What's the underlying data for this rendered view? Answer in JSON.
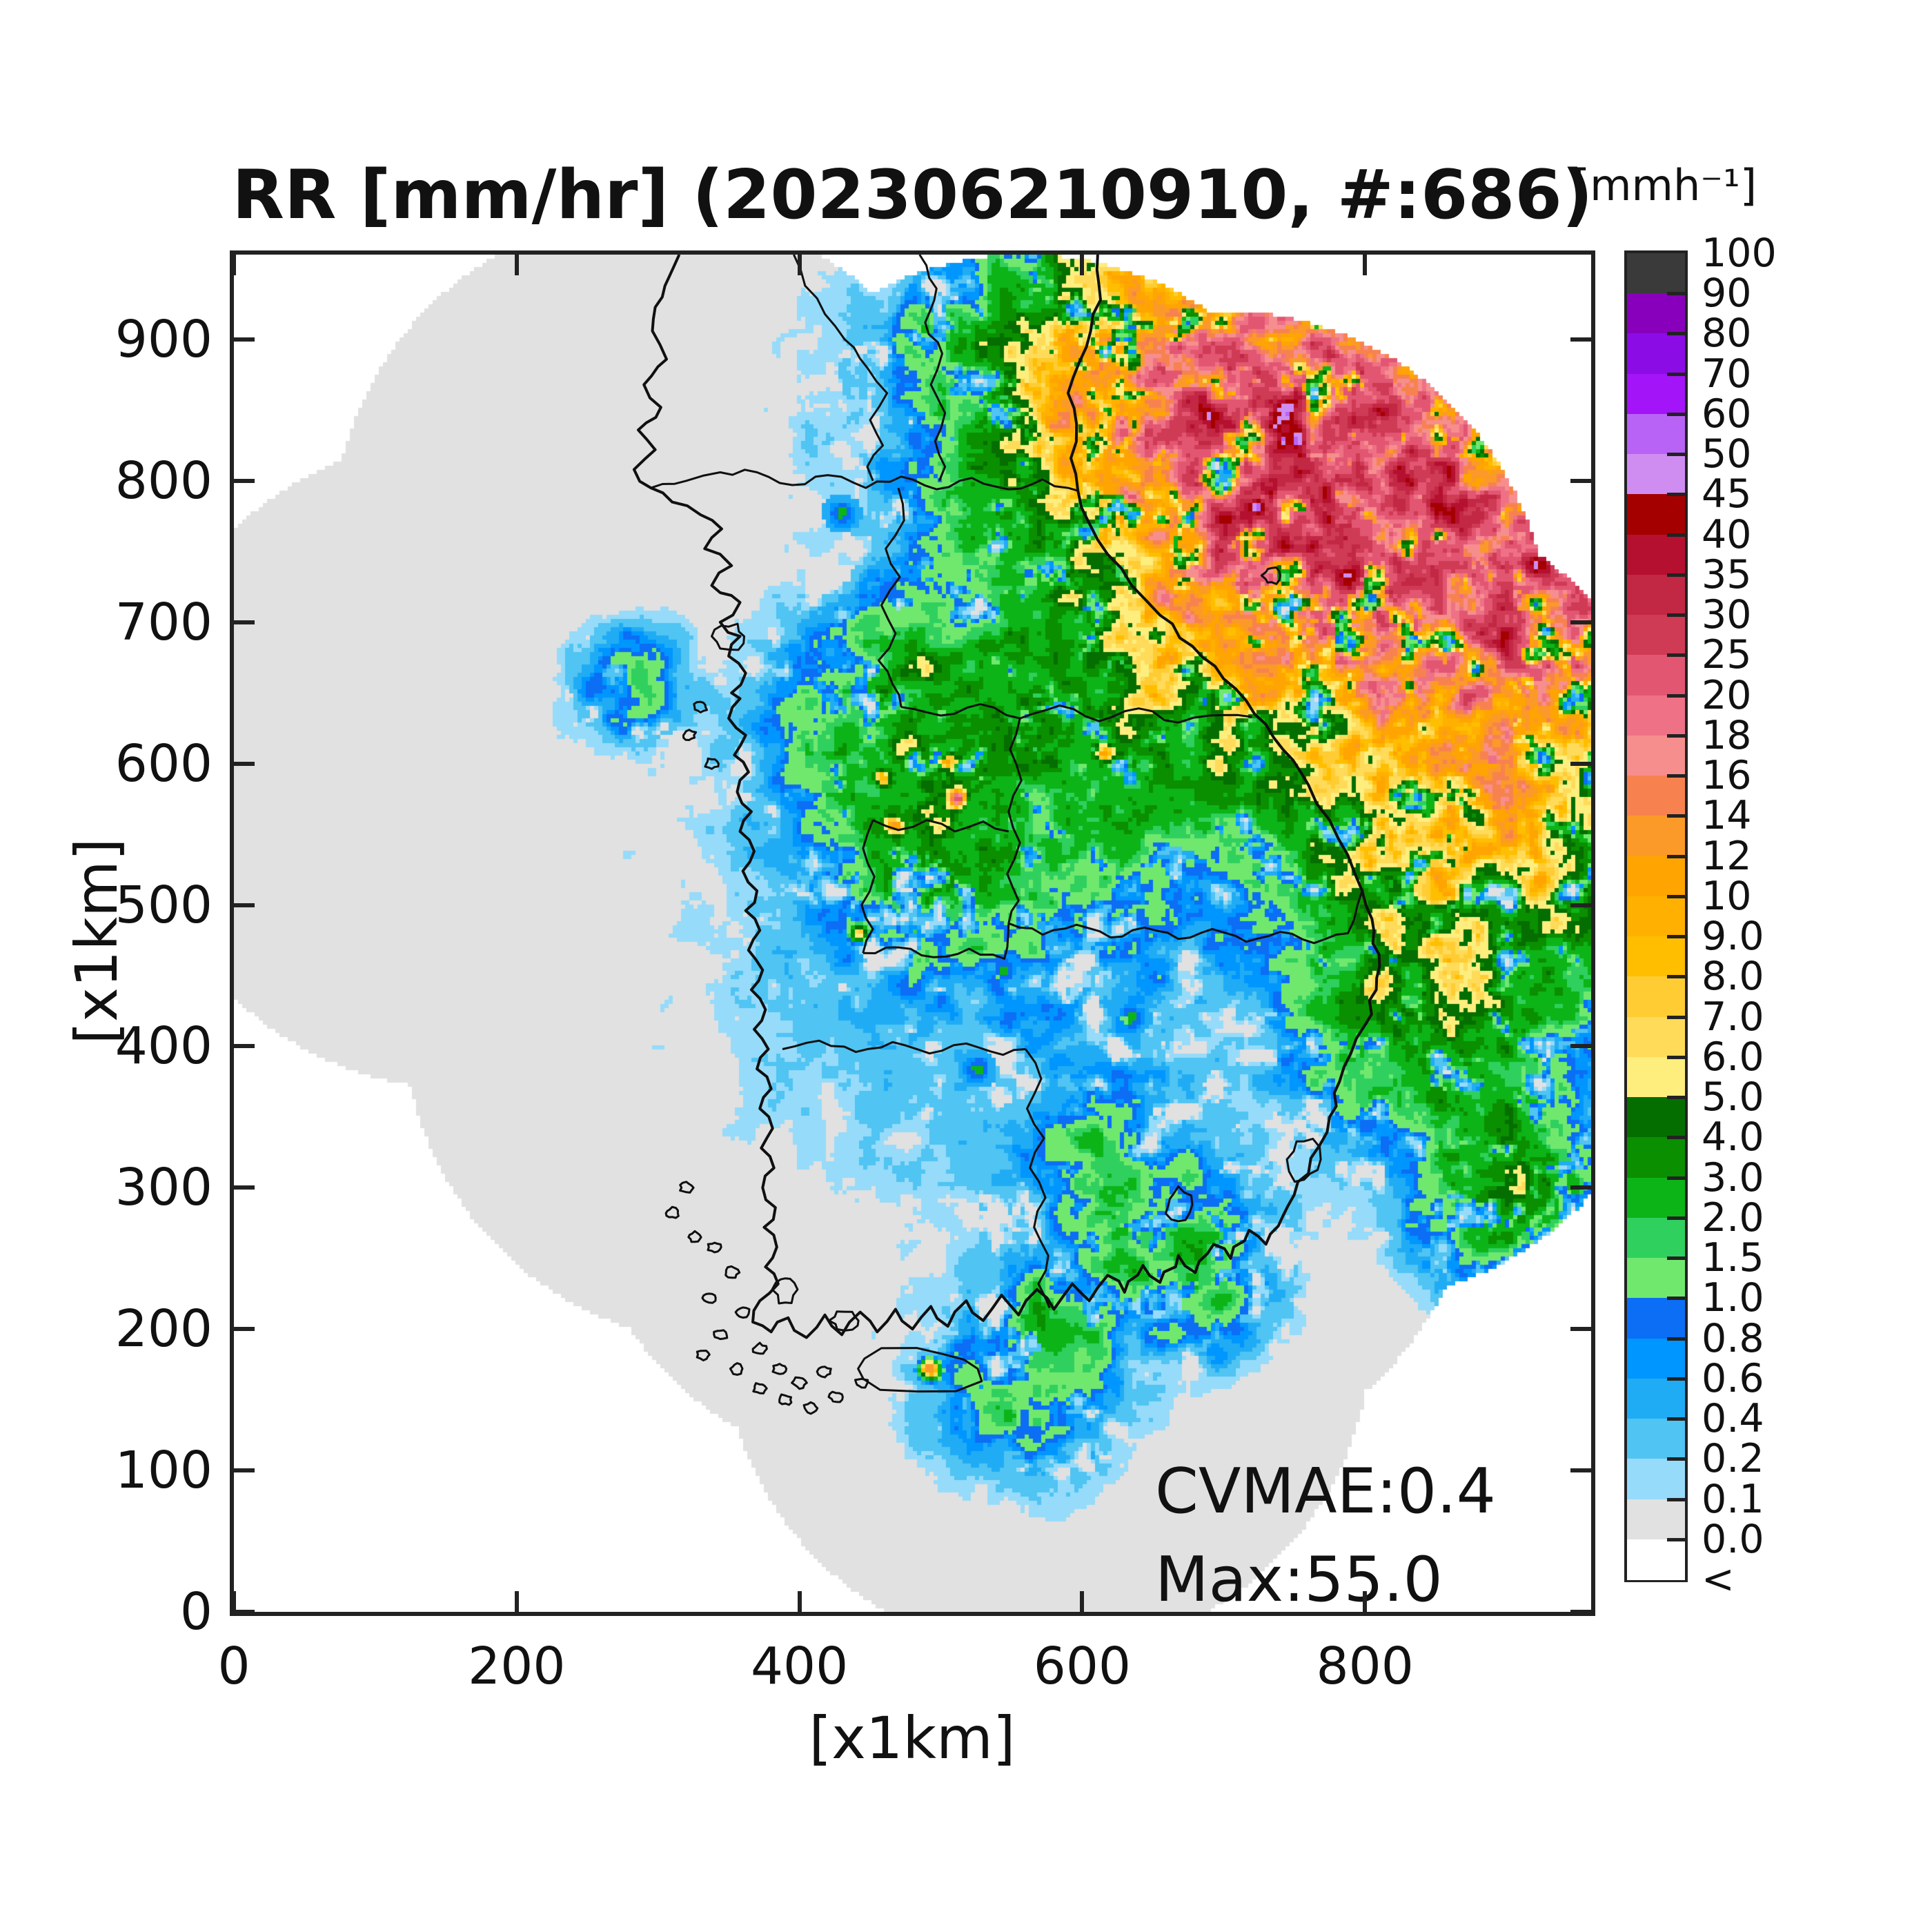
{
  "title": "RR [mm/hr] (202306210910, #:686)",
  "axes": {
    "xlabel": "[x1km]",
    "ylabel": "[x1km]",
    "x_ticks": [
      "0",
      "200",
      "400",
      "600",
      "800"
    ],
    "y_ticks": [
      "0",
      "100",
      "200",
      "300",
      "400",
      "500",
      "600",
      "700",
      "800",
      "900"
    ],
    "x_range_km": [
      0,
      960
    ],
    "y_range_km": [
      0,
      960
    ]
  },
  "annotations": {
    "cvmae_label": "CVMAE:0.4",
    "max_label": "Max:55.0"
  },
  "colorbar": {
    "unit_label": "[mmh⁻¹]",
    "tick_labels": [
      "100",
      "90",
      "80",
      "70",
      "60",
      "50",
      "45",
      "40",
      "35",
      "30",
      "25",
      "20",
      "18",
      "16",
      "14",
      "12",
      "10",
      "9.0",
      "8.0",
      "7.0",
      "6.0",
      "5.0",
      "4.0",
      "3.0",
      "2.0",
      "1.5",
      "1.0",
      "0.8",
      "0.6",
      "0.4",
      "0.2",
      "0.1",
      "0.0",
      "<"
    ],
    "segment_colors_top_to_bottom": [
      "#3a3a3a",
      "#8800bb",
      "#8c0ce6",
      "#a414f8",
      "#b863f5",
      "#cf8df2",
      "#a50000",
      "#b51030",
      "#c22743",
      "#cf3a55",
      "#e25672",
      "#ef7186",
      "#f78e8e",
      "#f8824f",
      "#fb9a28",
      "#ffa400",
      "#ffb000",
      "#ffbe00",
      "#ffcc33",
      "#ffdb59",
      "#fdee7e",
      "#056e00",
      "#0a8f00",
      "#0cb417",
      "#2fd05e",
      "#70e86e",
      "#0b6ef5",
      "#0096ff",
      "#20acf5",
      "#50c4f2",
      "#96dbfa",
      "#e1e1e1",
      "#ffffff"
    ]
  },
  "chart_data": {
    "type": "heatmap",
    "title": "RR [mm/hr] (202306210910, #:686)",
    "variable": "rainfall rate",
    "units": "mm/hr",
    "timestamp": "202306210910",
    "sample_count": 686,
    "cvmae": 0.4,
    "max_value_mm_hr": 55.0,
    "xlabel": "[x1km]",
    "ylabel": "[x1km]",
    "x_range_km": [
      0,
      960
    ],
    "y_range_km": [
      0,
      960
    ],
    "levels_mm_hr": [
      0.1,
      0.2,
      0.4,
      0.6,
      0.8,
      1.0,
      1.5,
      2.0,
      3.0,
      4.0,
      5.0,
      6.0,
      7.0,
      8.0,
      9.0,
      10,
      12,
      14,
      16,
      18,
      20,
      25,
      30,
      35,
      40,
      45,
      50,
      60,
      70,
      80,
      90,
      100
    ],
    "palette_low_to_high": [
      "#96dbfa",
      "#50c4f2",
      "#20acf5",
      "#0096ff",
      "#0b6ef5",
      "#70e86e",
      "#2fd05e",
      "#0cb417",
      "#0a8f00",
      "#056e00",
      "#fdee7e",
      "#ffdb59",
      "#ffcc33",
      "#ffbe00",
      "#ffb000",
      "#ffa400",
      "#fb9a28",
      "#f8824f",
      "#f78e8e",
      "#ef7186",
      "#e25672",
      "#cf3a55",
      "#c22743",
      "#b51030",
      "#a50000",
      "#cf8df2",
      "#b863f5",
      "#a414f8",
      "#8c0ce6",
      "#8800bb",
      "#3a3a3a"
    ],
    "no_echo_color": "#e1e1e1",
    "outside_coverage_color": "#ffffff",
    "coverage_circles_km": [
      [
        160,
        600
      ],
      [
        300,
        760
      ],
      [
        450,
        690
      ],
      [
        560,
        730
      ],
      [
        700,
        690
      ],
      [
        790,
        560
      ],
      [
        790,
        450
      ],
      [
        620,
        480
      ],
      [
        460,
        520
      ],
      [
        350,
        420
      ],
      [
        470,
        330
      ],
      [
        575,
        200
      ],
      [
        650,
        330
      ],
      [
        300,
        560
      ]
    ],
    "coverage_radius_km": 230,
    "precip_regions_km": [
      {
        "center": [
          770,
          800
        ],
        "radius": 200,
        "peak": 26
      },
      {
        "center": [
          930,
          700
        ],
        "radius": 150,
        "peak": 16
      },
      {
        "center": [
          640,
          870
        ],
        "radius": 110,
        "peak": 9
      },
      {
        "center": [
          845,
          560
        ],
        "radius": 120,
        "peak": 5
      },
      {
        "center": [
          850,
          430
        ],
        "radius": 110,
        "peak": 4.5
      },
      {
        "center": [
          905,
          300
        ],
        "radius": 80,
        "peak": 3.5
      },
      {
        "center": [
          950,
          520
        ],
        "radius": 90,
        "peak": 4
      },
      {
        "center": [
          560,
          590
        ],
        "radius": 140,
        "peak": 2.2
      },
      {
        "center": [
          460,
          630
        ],
        "radius": 90,
        "peak": 2.6
      },
      {
        "center": [
          480,
          520
        ],
        "radius": 70,
        "peak": 2.0
      },
      {
        "center": [
          280,
          655
        ],
        "radius": 50,
        "peak": 1.1
      },
      {
        "center": [
          620,
          300
        ],
        "radius": 80,
        "peak": 1.6
      },
      {
        "center": [
          560,
          160
        ],
        "radius": 80,
        "peak": 1.6
      },
      {
        "center": [
          680,
          240
        ],
        "radius": 70,
        "peak": 1.8
      },
      {
        "center": [
          580,
          205
        ],
        "radius": 45,
        "peak": 1.5
      },
      {
        "center": [
          500,
          900
        ],
        "radius": 40,
        "peak": 1.2
      },
      {
        "center": [
          560,
          500
        ],
        "radius": 260,
        "peak": 0.55
      },
      {
        "center": [
          520,
          850
        ],
        "radius": 150,
        "peak": 0.5
      }
    ],
    "clutter_rings_km": [
      [
        459,
        578
      ],
      [
        468,
        555
      ],
      [
        489,
        565
      ],
      [
        566,
        507
      ],
      [
        545,
        454
      ],
      [
        430,
        777
      ],
      [
        526,
        384
      ],
      [
        635,
        420
      ]
    ],
    "hot_specks_km": [
      [
        505,
        600
      ],
      [
        512,
        575
      ],
      [
        468,
        556
      ],
      [
        459,
        590
      ],
      [
        615,
        608
      ],
      [
        443,
        480
      ],
      [
        492,
        171
      ]
    ]
  }
}
